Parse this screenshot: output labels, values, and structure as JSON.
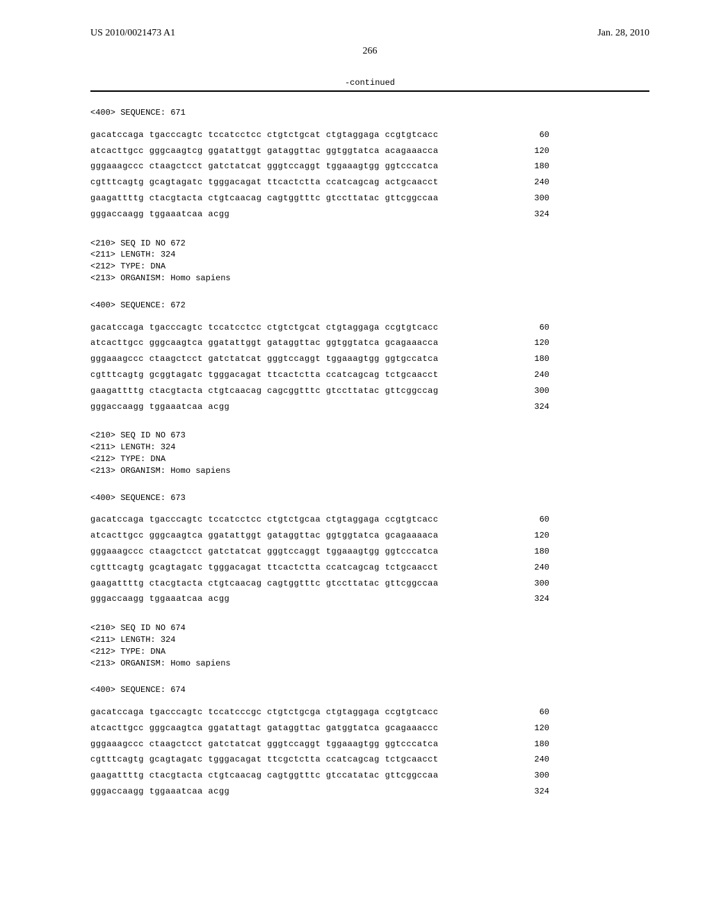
{
  "header": {
    "pub_number": "US 2010/0021473 A1",
    "pub_date": "Jan. 28, 2010"
  },
  "page_number": "266",
  "continued_label": "-continued",
  "sequences": [
    {
      "header": "<400> SEQUENCE: 671",
      "meta_lines": [],
      "lines": [
        {
          "text": "gacatccaga tgacccagtc tccatcctcc ctgtctgcat ctgtaggaga ccgtgtcacc",
          "pos": "60"
        },
        {
          "text": "atcacttgcc gggcaagtcg ggatattggt gataggttac ggtggtatca acagaaacca",
          "pos": "120"
        },
        {
          "text": "gggaaagccc ctaagctcct gatctatcat gggtccaggt tggaaagtgg ggtcccatca",
          "pos": "180"
        },
        {
          "text": "cgtttcagtg gcagtagatc tgggacagat ttcactctta ccatcagcag actgcaacct",
          "pos": "240"
        },
        {
          "text": "gaagattttg ctacgtacta ctgtcaacag cagtggtttc gtccttatac gttcggccaa",
          "pos": "300"
        },
        {
          "text": "gggaccaagg tggaaatcaa acgg",
          "pos": "324"
        }
      ]
    },
    {
      "meta_lines": [
        "<210> SEQ ID NO 672",
        "<211> LENGTH: 324",
        "<212> TYPE: DNA",
        "<213> ORGANISM: Homo sapiens"
      ],
      "header": "<400> SEQUENCE: 672",
      "lines": [
        {
          "text": "gacatccaga tgacccagtc tccatcctcc ctgtctgcat ctgtaggaga ccgtgtcacc",
          "pos": "60"
        },
        {
          "text": "atcacttgcc gggcaagtca ggatattggt gataggttac ggtggtatca gcagaaacca",
          "pos": "120"
        },
        {
          "text": "gggaaagccc ctaagctcct gatctatcat gggtccaggt tggaaagtgg ggtgccatca",
          "pos": "180"
        },
        {
          "text": "cgtttcagtg gcggtagatc tgggacagat ttcactctta ccatcagcag tctgcaacct",
          "pos": "240"
        },
        {
          "text": "gaagattttg ctacgtacta ctgtcaacag cagcggtttc gtccttatac gttcggccag",
          "pos": "300"
        },
        {
          "text": "gggaccaagg tggaaatcaa acgg",
          "pos": "324"
        }
      ]
    },
    {
      "meta_lines": [
        "<210> SEQ ID NO 673",
        "<211> LENGTH: 324",
        "<212> TYPE: DNA",
        "<213> ORGANISM: Homo sapiens"
      ],
      "header": "<400> SEQUENCE: 673",
      "lines": [
        {
          "text": "gacatccaga tgacccagtc tccatcctcc ctgtctgcaa ctgtaggaga ccgtgtcacc",
          "pos": "60"
        },
        {
          "text": "atcacttgcc gggcaagtca ggatattggt gataggttac ggtggtatca gcagaaaaca",
          "pos": "120"
        },
        {
          "text": "gggaaagccc ctaagctcct gatctatcat gggtccaggt tggaaagtgg ggtcccatca",
          "pos": "180"
        },
        {
          "text": "cgtttcagtg gcagtagatc tgggacagat ttcactctta ccatcagcag tctgcaacct",
          "pos": "240"
        },
        {
          "text": "gaagattttg ctacgtacta ctgtcaacag cagtggtttc gtccttatac gttcggccaa",
          "pos": "300"
        },
        {
          "text": "gggaccaagg tggaaatcaa acgg",
          "pos": "324"
        }
      ]
    },
    {
      "meta_lines": [
        "<210> SEQ ID NO 674",
        "<211> LENGTH: 324",
        "<212> TYPE: DNA",
        "<213> ORGANISM: Homo sapiens"
      ],
      "header": "<400> SEQUENCE: 674",
      "lines": [
        {
          "text": "gacatccaga tgacccagtc tccatcccgc ctgtctgcga ctgtaggaga ccgtgtcacc",
          "pos": "60"
        },
        {
          "text": "atcacttgcc gggcaagtca ggatattagt gataggttac gatggtatca gcagaaaccc",
          "pos": "120"
        },
        {
          "text": "gggaaagccc ctaagctcct gatctatcat gggtccaggt tggaaagtgg ggtcccatca",
          "pos": "180"
        },
        {
          "text": "cgtttcagtg gcagtagatc tgggacagat ttcgctctta ccatcagcag tctgcaacct",
          "pos": "240"
        },
        {
          "text": "gaagattttg ctacgtacta ctgtcaacag cagtggtttc gtccatatac gttcggccaa",
          "pos": "300"
        },
        {
          "text": "gggaccaagg tggaaatcaa acgg",
          "pos": "324"
        }
      ]
    }
  ]
}
